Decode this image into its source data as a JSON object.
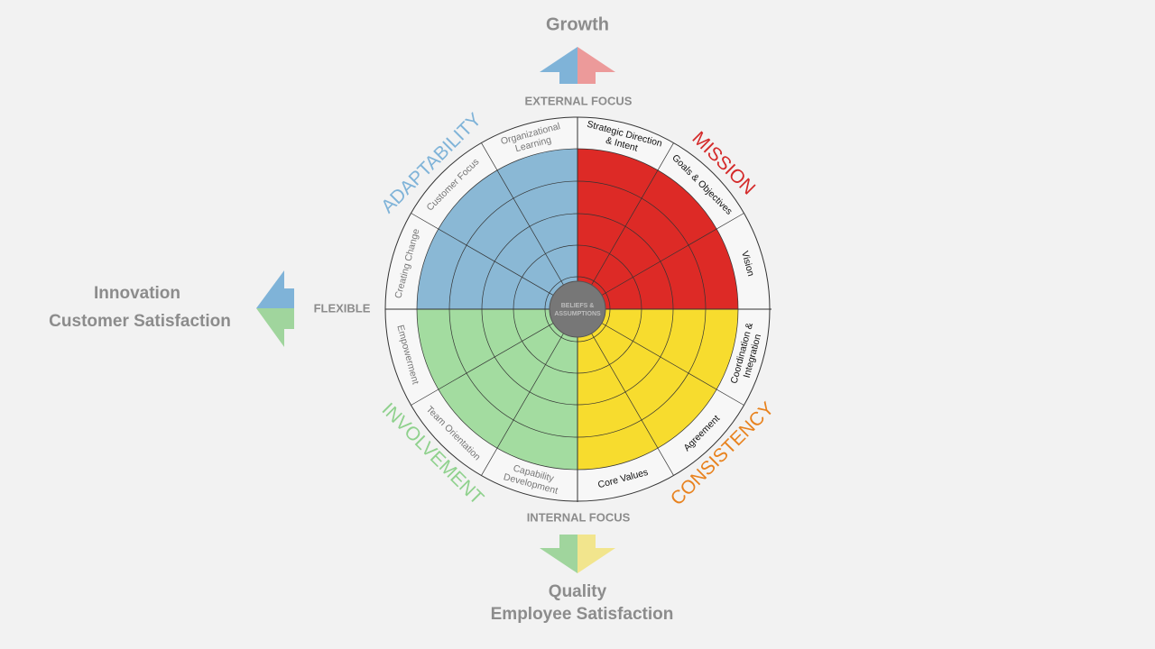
{
  "header": {
    "top": "Growth",
    "external": "EXTERNAL FOCUS",
    "internal": "INTERNAL FOCUS",
    "left_side": "FLEXIBLE",
    "left_lines": [
      "Innovation",
      "Customer Satisfaction"
    ],
    "bottom_lines": [
      "Quality",
      "Employee Satisfaction"
    ]
  },
  "center": [
    "BELIEFS &",
    "ASSUMPTIONS"
  ],
  "traits": [
    {
      "name": "MISSION",
      "color": "#d42a2a",
      "fill": "#dd2a26",
      "label_color": "#111111",
      "segments": [
        [
          "Strategic Direction",
          "& Intent"
        ],
        [
          "Goals & Objectives"
        ],
        [
          "Vision"
        ]
      ]
    },
    {
      "name": "CONSISTENCY",
      "color": "#e8821e",
      "fill": "#f7dc2e",
      "label_color": "#111111",
      "segments": [
        [
          "Coordination &",
          "Integration"
        ],
        [
          "Agreement"
        ],
        [
          "Core Values"
        ]
      ]
    },
    {
      "name": "INVOLVEMENT",
      "color": "#8fd18d",
      "fill": "#a3dca0",
      "label_color": "#777777",
      "segments": [
        [
          "Capability",
          "Development"
        ],
        [
          "Team Orientation"
        ],
        [
          "Empowerment"
        ]
      ]
    },
    {
      "name": "ADAPTABILITY",
      "color": "#7fb3d8",
      "fill": "#8ab8d5",
      "label_color": "#777777",
      "segments": [
        [
          "Creating Change"
        ],
        [
          "Customer Focus"
        ],
        [
          "Organizational",
          "Learning"
        ]
      ]
    }
  ]
}
